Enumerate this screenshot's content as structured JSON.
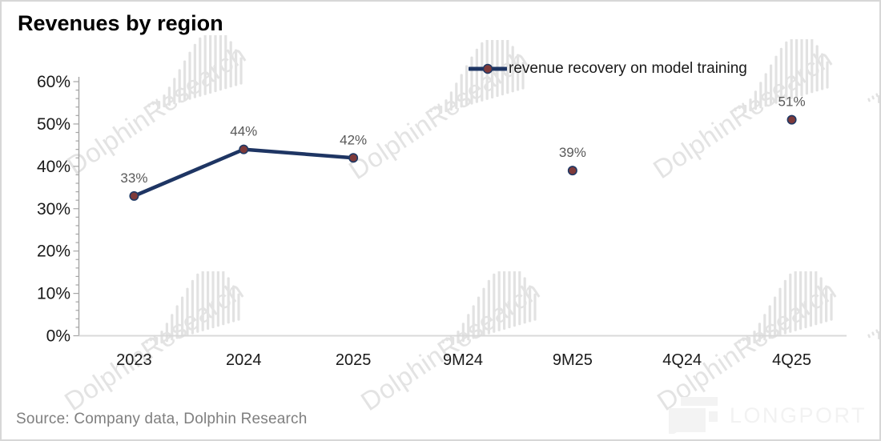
{
  "header": {
    "title": "Revenues by region"
  },
  "legend": {
    "label": "revenue recovery on model training"
  },
  "source": {
    "label": "Source:  Company data, Dolphin Research"
  },
  "watermark": {
    "text": "DolphinResearch",
    "logo": "dolphin-bars-logo"
  },
  "brand": {
    "label": "LONGPORT",
    "logo": "longport-logo"
  },
  "chart_data": {
    "type": "line",
    "title": "Revenues by region",
    "categories": [
      "2023",
      "2024",
      "2025",
      "9M24",
      "9M25",
      "4Q24",
      "4Q25"
    ],
    "series": [
      {
        "name": "revenue recovery on model training",
        "values": [
          33,
          44,
          42,
          null,
          39,
          null,
          51
        ]
      }
    ],
    "data_labels": [
      "33%",
      "44%",
      "42%",
      null,
      "39%",
      null,
      "51%"
    ],
    "ylim": [
      0,
      60
    ],
    "yticks": [
      "0%",
      "10%",
      "20%",
      "30%",
      "40%",
      "50%",
      "60%"
    ],
    "ytick_interval": 10,
    "minor_tick_interval": 2,
    "grid": false,
    "legend_position": "top-right",
    "colors": {
      "line": "#1E3563",
      "marker_fill": "#7E3A3A",
      "marker_stroke": "#1F3864",
      "data_label": "#595959",
      "tick_label": "#1a1a1a",
      "y_axis": "#A6A6A6",
      "x_axis": "#D9D9D9"
    }
  }
}
